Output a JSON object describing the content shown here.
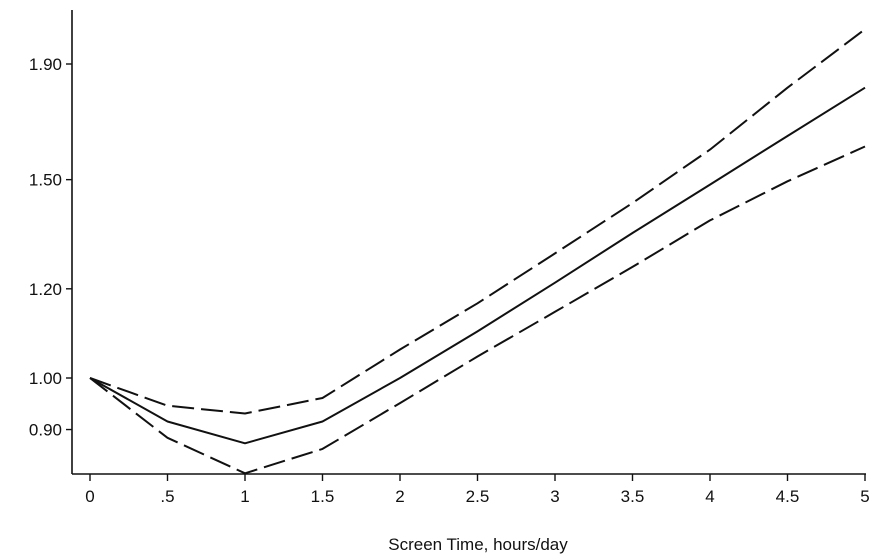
{
  "chart_data": {
    "type": "line",
    "title": "",
    "xlabel": "Screen Time, hours/day",
    "ylabel": "",
    "y_scale": "log",
    "xlim": [
      0,
      5
    ],
    "ylim": [
      0.8,
      2.1
    ],
    "grid": false,
    "x_ticks": [
      {
        "value": 0,
        "label": "0"
      },
      {
        "value": 0.5,
        "label": ".5"
      },
      {
        "value": 1,
        "label": "1"
      },
      {
        "value": 1.5,
        "label": "1.5"
      },
      {
        "value": 2,
        "label": "2"
      },
      {
        "value": 2.5,
        "label": "2.5"
      },
      {
        "value": 3,
        "label": "3"
      },
      {
        "value": 3.5,
        "label": "3.5"
      },
      {
        "value": 4,
        "label": "4"
      },
      {
        "value": 4.5,
        "label": "4.5"
      },
      {
        "value": 5,
        "label": "5"
      }
    ],
    "y_ticks": [
      {
        "value": 0.9,
        "label": "0.90"
      },
      {
        "value": 1.0,
        "label": "1.00"
      },
      {
        "value": 1.2,
        "label": "1.20"
      },
      {
        "value": 1.5,
        "label": "1.50"
      },
      {
        "value": 1.9,
        "label": "1.90"
      }
    ],
    "x": [
      0,
      0.5,
      1,
      1.5,
      2,
      2.5,
      3,
      3.5,
      4,
      4.5,
      5
    ],
    "series": [
      {
        "style": "solid",
        "values": [
          1.0,
          0.915,
          0.875,
          0.915,
          1.0,
          1.1,
          1.215,
          1.345,
          1.485,
          1.64,
          1.81
        ]
      },
      {
        "style": "dashed",
        "values": [
          1.0,
          0.945,
          0.93,
          0.96,
          1.06,
          1.165,
          1.29,
          1.43,
          1.595,
          1.81,
          2.04
        ]
      },
      {
        "style": "dashed",
        "values": [
          1.0,
          0.885,
          0.823,
          0.865,
          0.95,
          1.045,
          1.145,
          1.255,
          1.38,
          1.495,
          1.605
        ]
      }
    ]
  }
}
